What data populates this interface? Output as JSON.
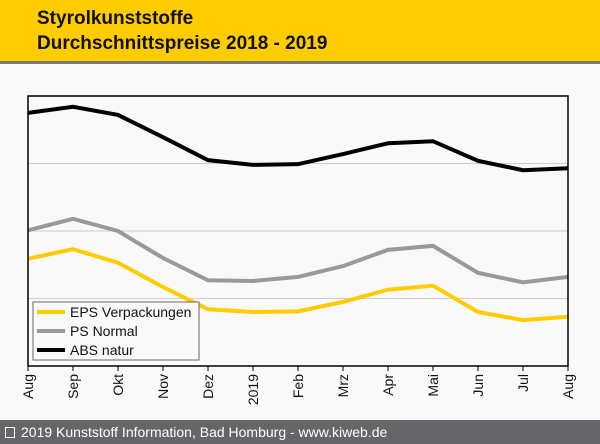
{
  "header": {
    "title_line1": "Styrolkunststoffe",
    "title_line2": "Durchschnittspreise 2018 - 2019",
    "background": "#ffcc00"
  },
  "footer": {
    "icon": "copyright-box-icon",
    "text": "2019 Kunststoff Information, Bad Homburg - www.kiweb.de"
  },
  "chart_data": {
    "type": "line",
    "title": "Styrolkunststoffe Durchschnittspreise 2018 - 2019",
    "xlabel": "",
    "ylabel": "",
    "categories": [
      "Aug",
      "Sep",
      "Okt",
      "Nov",
      "Dez",
      "2019",
      "Feb",
      "Mrz",
      "Apr",
      "Mai",
      "Jun",
      "Jul",
      "Aug"
    ],
    "ylim": [
      0,
      400
    ],
    "y_gridlines": [
      100,
      200,
      300
    ],
    "y_tick_labels_shown": false,
    "grid": true,
    "legend_position": "bottom-left",
    "series": [
      {
        "name": "EPS Verpackungen",
        "color": "#ffcc00",
        "values": [
          159,
          173,
          153,
          117,
          84,
          80,
          81,
          95,
          113,
          119,
          80,
          68,
          73
        ]
      },
      {
        "name": "PS Normal",
        "color": "#999999",
        "values": [
          201,
          218,
          200,
          160,
          127,
          126,
          132,
          148,
          172,
          178,
          138,
          124,
          132
        ]
      },
      {
        "name": "ABS natur",
        "color": "#000000",
        "values": [
          375,
          384,
          372,
          339,
          305,
          298,
          299,
          314,
          330,
          333,
          304,
          290,
          293
        ]
      }
    ]
  }
}
